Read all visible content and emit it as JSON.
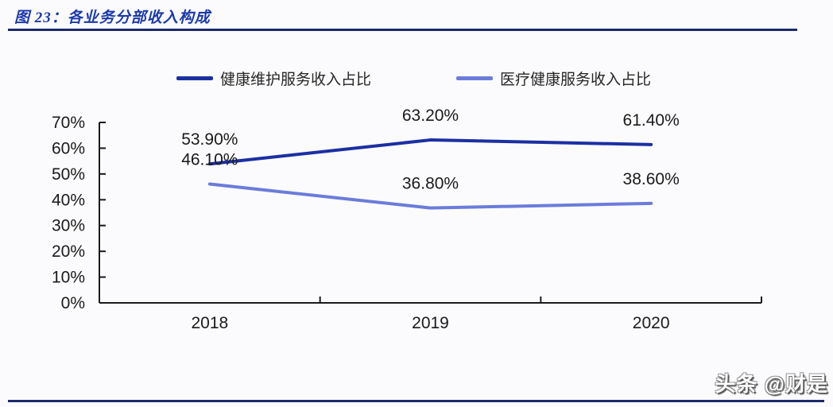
{
  "header": {
    "title": "图 23：各业务分部收入构成"
  },
  "chart_data": {
    "type": "line",
    "title": "各业务分部收入构成",
    "categories": [
      "2018",
      "2019",
      "2020"
    ],
    "series": [
      {
        "name": "健康维护服务收入占比",
        "color": "#1c2fa2",
        "values": [
          53.9,
          63.2,
          61.4
        ],
        "point_labels": [
          "53.90%",
          "63.20%",
          "61.40%"
        ]
      },
      {
        "name": "医疗健康服务收入占比",
        "color": "#6b7cdb",
        "values": [
          46.1,
          36.8,
          38.6
        ],
        "point_labels": [
          "46.10%",
          "36.80%",
          "38.60%"
        ]
      }
    ],
    "xlabel": "",
    "ylabel": "",
    "ylim": [
      0,
      70
    ],
    "ytick_step": 10,
    "ytick_labels": [
      "0%",
      "10%",
      "20%",
      "30%",
      "40%",
      "50%",
      "60%",
      "70%"
    ],
    "grid": false,
    "legend_position": "top",
    "axis_color": "#1a1a1a",
    "label_color": "#1a1a1a"
  },
  "footer": {
    "watermark": "头条 @财是"
  },
  "colors": {
    "title": "#1c3aa9",
    "rule": "#1b2a6b",
    "background": "#fbfbfd"
  }
}
